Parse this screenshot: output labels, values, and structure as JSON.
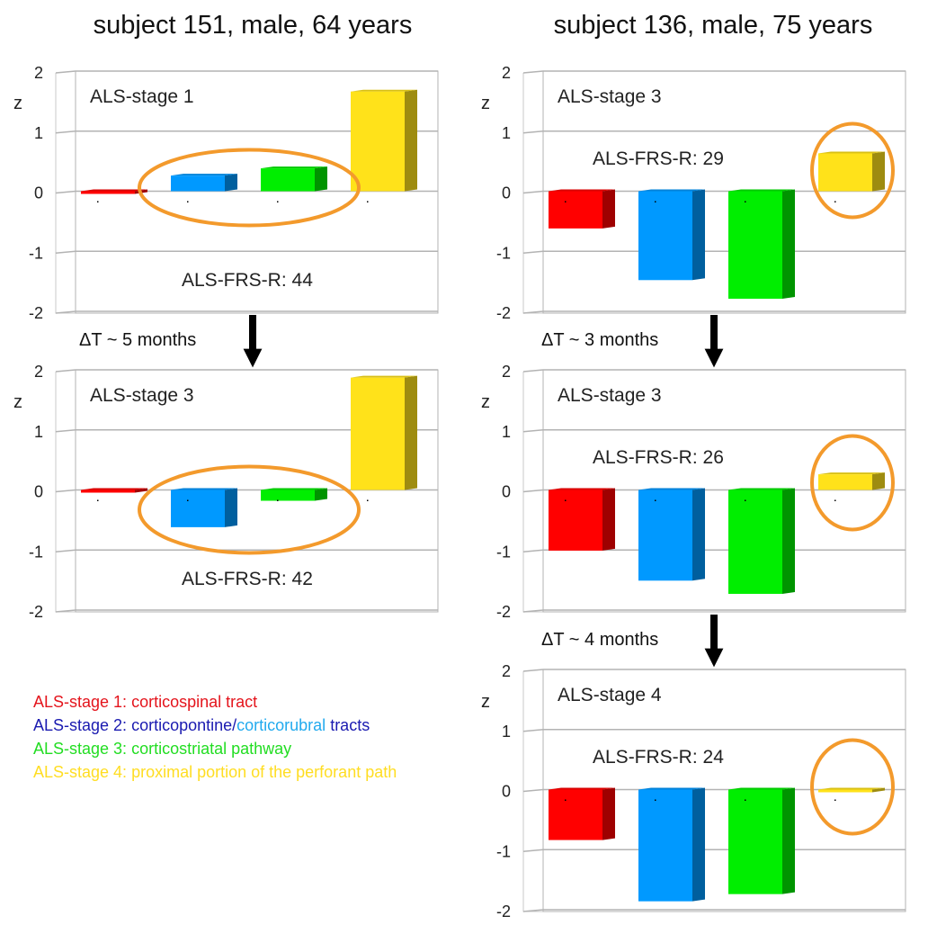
{
  "colors": {
    "stage1": "#ff0000",
    "stage2": "#0099ff",
    "stage3": "#00ee00",
    "stage4": "#ffe21a",
    "highlight": "#f39a2c",
    "grid": "#b3b3b3",
    "legend_red": "#e4141c",
    "legend_blue": "#1a1ab0",
    "legend_cyan": "#22aaee",
    "legend_green": "#22dd22",
    "legend_yellow": "#ffdd22"
  },
  "columns": [
    {
      "title": "subject 151, male, 64 years"
    },
    {
      "title": "subject 136, male, 75 years"
    }
  ],
  "intervals": [
    "ΔT ~ 5 months",
    "ΔT ~ 3 months",
    "ΔT ~ 4 months"
  ],
  "chart_data": [
    {
      "type": "bar",
      "column": 1,
      "row": 1,
      "stage_label": "ALS-stage 1",
      "frs_label": "ALS-FRS-R: 44",
      "ylabel": "z",
      "ylim": [
        -2,
        2
      ],
      "yticks": [
        "2",
        "1",
        "0",
        "-1",
        "-2"
      ],
      "values": [
        -0.02,
        0.26,
        0.38,
        1.66
      ],
      "highlighted_bars": [
        2,
        3
      ]
    },
    {
      "type": "bar",
      "column": 1,
      "row": 2,
      "stage_label": "ALS-stage 3",
      "frs_label": "ALS-FRS-R: 42",
      "ylabel": "z",
      "ylim": [
        -2,
        2
      ],
      "yticks": [
        "2",
        "1",
        "0",
        "-1",
        "-2"
      ],
      "values": [
        -0.04,
        -0.62,
        -0.18,
        1.87
      ],
      "highlighted_bars": [
        2,
        3
      ]
    },
    {
      "type": "bar",
      "column": 2,
      "row": 1,
      "stage_label": "ALS-stage 3",
      "frs_label": "ALS-FRS-R: 29",
      "ylabel": "z",
      "ylim": [
        -2,
        2
      ],
      "yticks": [
        "2",
        "1",
        "0",
        "-1",
        "-2"
      ],
      "values": [
        -0.62,
        -1.48,
        -1.79,
        0.63
      ],
      "highlighted_bars": [
        4
      ]
    },
    {
      "type": "bar",
      "column": 2,
      "row": 2,
      "stage_label": "ALS-stage 3",
      "frs_label": "ALS-FRS-R: 26",
      "ylabel": "z",
      "ylim": [
        -2,
        2
      ],
      "yticks": [
        "2",
        "1",
        "0",
        "-1",
        "-2"
      ],
      "values": [
        -1.01,
        -1.51,
        -1.73,
        0.26
      ],
      "highlighted_bars": [
        4
      ]
    },
    {
      "type": "bar",
      "column": 2,
      "row": 3,
      "stage_label": "ALS-stage 4",
      "frs_label": "ALS-FRS-R: 24",
      "ylabel": "z",
      "ylim": [
        -2,
        2
      ],
      "yticks": [
        "2",
        "1",
        "0",
        "-1",
        "-2"
      ],
      "values": [
        -0.84,
        -1.86,
        -1.74,
        -0.03
      ],
      "highlighted_bars": [
        4
      ]
    }
  ],
  "legend": [
    {
      "parts": [
        {
          "text": "ALS-stage 1: corticospinal tract",
          "color": "#e4141c"
        }
      ]
    },
    {
      "parts": [
        {
          "text": "ALS-stage 2: corticopontine/",
          "color": "#1a1ab0"
        },
        {
          "text": "corticorubral",
          "color": "#22aaee"
        },
        {
          "text": " tracts",
          "color": "#1a1ab0"
        }
      ]
    },
    {
      "parts": [
        {
          "text": "ALS-stage 3: corticostriatal pathway",
          "color": "#22dd22"
        }
      ]
    },
    {
      "parts": [
        {
          "text": "ALS-stage 4: proximal portion of the perforant path",
          "color": "#ffdd22"
        }
      ]
    }
  ]
}
